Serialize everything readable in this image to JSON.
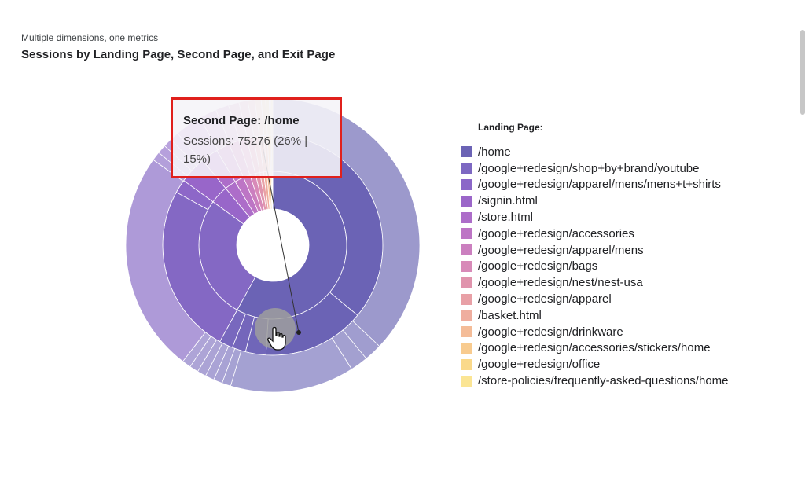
{
  "header": {
    "subtitle": "Multiple dimensions, one metrics",
    "title": "Sessions by Landing Page, Second Page, and Exit Page"
  },
  "tooltip": {
    "title": "Second Page: /home",
    "body": "Sessions: 75276 (26% | 15%)"
  },
  "colors": {
    "tooltip_border": "#e0201c",
    "pointer_dot": "#9e9e9e"
  },
  "legend": {
    "title": "Landing Page:",
    "items": [
      {
        "label": "/home",
        "color": "#6b63b5"
      },
      {
        "label": "/google+redesign/shop+by+brand/youtube",
        "color": "#7d68c2"
      },
      {
        "label": "/google+redesign/apparel/mens/mens+t+shirts",
        "color": "#8b67c8"
      },
      {
        "label": "/signin.html",
        "color": "#9b66c9"
      },
      {
        "label": "/store.html",
        "color": "#ad6dc9"
      },
      {
        "label": "/google+redesign/accessories",
        "color": "#bd75c5"
      },
      {
        "label": "/google+redesign/apparel/mens",
        "color": "#cb7fbf"
      },
      {
        "label": "/google+redesign/bags",
        "color": "#d88ab8"
      },
      {
        "label": "/google+redesign/nest/nest-usa",
        "color": "#e094ad"
      },
      {
        "label": "/google+redesign/apparel",
        "color": "#e8a0a6"
      },
      {
        "label": "/basket.html",
        "color": "#efae9f"
      },
      {
        "label": "/google+redesign/drinkware",
        "color": "#f4bc98"
      },
      {
        "label": "/google+redesign/accessories/stickers/home",
        "color": "#f8cb8f"
      },
      {
        "label": "/google+redesign/office",
        "color": "#fad98a"
      },
      {
        "label": "/store-policies/frequently-asked-questions/home",
        "color": "#fbe594"
      }
    ]
  },
  "chart_data": {
    "type": "sunburst",
    "metric": "Sessions",
    "levels": [
      "Landing Page",
      "Second Page",
      "Exit Page"
    ],
    "highlighted": {
      "level": "Second Page",
      "label": "/home",
      "value": 75276,
      "pct_of_parent": 26,
      "pct_of_total": 15
    },
    "rings": [
      {
        "name": "Landing Page",
        "segments": [
          {
            "label": "/home",
            "share": 0.58,
            "color": "#6b63b5"
          },
          {
            "label": "/google+redesign/shop+by+brand/youtube",
            "share": 0.27,
            "color": "#8468c4"
          },
          {
            "label": "/google+redesign/apparel/mens/mens+t+shirts",
            "share": 0.04,
            "color": "#9866c9"
          },
          {
            "label": "/signin.html",
            "share": 0.025,
            "color": "#ad6dc9"
          },
          {
            "label": "/store.html",
            "share": 0.02,
            "color": "#bd75c5"
          },
          {
            "label": "/google+redesign/accessories",
            "share": 0.015,
            "color": "#cb7fbf"
          },
          {
            "label": "/google+redesign/apparel/mens",
            "share": 0.012,
            "color": "#d88ab8"
          },
          {
            "label": "/google+redesign/bags",
            "share": 0.01,
            "color": "#e094ad"
          },
          {
            "label": "/google+redesign/nest/nest-usa",
            "share": 0.008,
            "color": "#e8a0a6"
          },
          {
            "label": "/google+redesign/apparel",
            "share": 0.007,
            "color": "#efae9f"
          },
          {
            "label": "/basket.html",
            "share": 0.005,
            "color": "#f4bc98"
          },
          {
            "label": "/google+redesign/drinkware",
            "share": 0.004,
            "color": "#f8cb8f"
          },
          {
            "label": "/google+redesign/accessories/stickers/home",
            "share": 0.002,
            "color": "#fad98a"
          },
          {
            "label": "/google+redesign/office",
            "share": 0.001,
            "color": "#fbe594"
          },
          {
            "label": "/store-policies/frequently-asked-questions/home",
            "share": 0.001,
            "color": "#fdf0b5"
          }
        ]
      },
      {
        "name": "Second Page",
        "segments": [
          {
            "label": "",
            "share": 0.36,
            "color": "#6b63b5"
          },
          {
            "label": "/home",
            "share": 0.15,
            "color": "#6b63b5"
          },
          {
            "label": "",
            "share": 0.03,
            "color": "#7066b9"
          },
          {
            "label": "",
            "share": 0.02,
            "color": "#7466bb"
          },
          {
            "label": "",
            "share": 0.02,
            "color": "#7868be"
          },
          {
            "label": "",
            "share": 0.25,
            "color": "#8468c4"
          },
          {
            "label": "",
            "share": 0.02,
            "color": "#8d67c8"
          },
          {
            "label": "",
            "share": 0.04,
            "color": "#9866c9"
          },
          {
            "label": "",
            "share": 0.025,
            "color": "#ad6dc9"
          },
          {
            "label": "",
            "share": 0.02,
            "color": "#bd75c5"
          },
          {
            "label": "",
            "share": 0.015,
            "color": "#cb7fbf"
          },
          {
            "label": "",
            "share": 0.012,
            "color": "#d88ab8"
          },
          {
            "label": "",
            "share": 0.01,
            "color": "#e094ad"
          },
          {
            "label": "",
            "share": 0.008,
            "color": "#e8a0a6"
          },
          {
            "label": "",
            "share": 0.007,
            "color": "#efae9f"
          },
          {
            "label": "",
            "share": 0.005,
            "color": "#f4bc98"
          },
          {
            "label": "",
            "share": 0.004,
            "color": "#f8cb8f"
          },
          {
            "label": "",
            "share": 0.002,
            "color": "#fad98a"
          },
          {
            "label": "",
            "share": 0.002,
            "color": "#fbe594"
          }
        ]
      },
      {
        "name": "Exit Page",
        "segments": [
          {
            "label": "",
            "share": 0.38,
            "color": "#9c99cc"
          },
          {
            "label": "",
            "share": 0.02,
            "color": "#a09dcf"
          },
          {
            "label": "",
            "share": 0.02,
            "color": "#a3a0d0"
          },
          {
            "label": "",
            "share": 0.14,
            "color": "#a4a1d2"
          },
          {
            "label": "",
            "share": 0.01,
            "color": "#a6a2d3"
          },
          {
            "label": "",
            "share": 0.01,
            "color": "#a8a2d4"
          },
          {
            "label": "",
            "share": 0.01,
            "color": "#aaa3d5"
          },
          {
            "label": "",
            "share": 0.01,
            "color": "#aba3d5"
          },
          {
            "label": "",
            "share": 0.01,
            "color": "#ada4d6"
          },
          {
            "label": "",
            "share": 0.01,
            "color": "#aea4d7"
          },
          {
            "label": "",
            "share": 0.25,
            "color": "#ae9ad8"
          },
          {
            "label": "",
            "share": 0.01,
            "color": "#b39fda"
          },
          {
            "label": "",
            "share": 0.01,
            "color": "#b6a0dc"
          },
          {
            "label": "",
            "share": 0.01,
            "color": "#b9a2dd"
          },
          {
            "label": "",
            "share": 0.01,
            "color": "#bc9fdc"
          },
          {
            "label": "",
            "share": 0.03,
            "color": "#c29bd9"
          },
          {
            "label": "",
            "share": 0.02,
            "color": "#c9a2d5"
          },
          {
            "label": "",
            "share": 0.015,
            "color": "#d3aad4"
          },
          {
            "label": "",
            "share": 0.012,
            "color": "#dcb3cf"
          },
          {
            "label": "",
            "share": 0.01,
            "color": "#e4bcc8"
          },
          {
            "label": "",
            "share": 0.008,
            "color": "#ebc6c2"
          },
          {
            "label": "",
            "share": 0.007,
            "color": "#f0d0bc"
          },
          {
            "label": "",
            "share": 0.005,
            "color": "#f4dab5"
          },
          {
            "label": "",
            "share": 0.004,
            "color": "#f7e3b0"
          },
          {
            "label": "",
            "share": 0.002,
            "color": "#f9ebb0"
          },
          {
            "label": "",
            "share": 0.002,
            "color": "#fbf1b8"
          }
        ]
      }
    ]
  }
}
